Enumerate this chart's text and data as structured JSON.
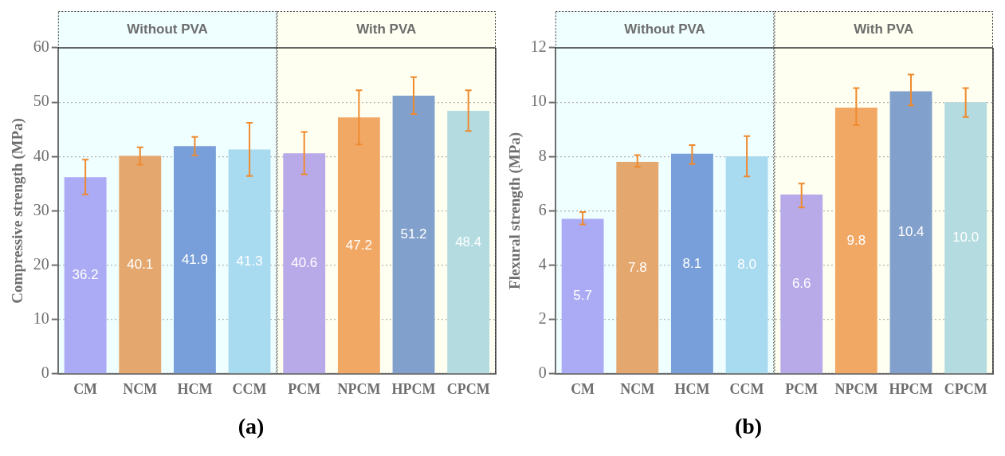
{
  "chart_data": [
    {
      "type": "bar",
      "title": "(a)",
      "ylabel": "Compressive strength (MPa)",
      "categories": [
        "CM",
        "NCM",
        "HCM",
        "CCM",
        "PCM",
        "NPCM",
        "HPCM",
        "CPCM"
      ],
      "values": [
        36.2,
        40.1,
        41.9,
        41.3,
        40.6,
        47.2,
        51.2,
        48.4
      ],
      "colors": [
        "#aaaaf5",
        "#e4a76e",
        "#789fda",
        "#a8daf0",
        "#b8aae8",
        "#f2a865",
        "#82a0cc",
        "#b3dbe0"
      ],
      "errors": [
        [
          33.0,
          39.4
        ],
        [
          38.5,
          41.7
        ],
        [
          40.2,
          43.6
        ],
        [
          36.4,
          46.2
        ],
        [
          36.7,
          44.5
        ],
        [
          42.2,
          52.2
        ],
        [
          47.8,
          54.6
        ],
        [
          44.7,
          52.2
        ]
      ],
      "ylim": [
        0,
        60
      ],
      "yticks": [
        0,
        10,
        20,
        30,
        40,
        50,
        60
      ],
      "bands": [
        {
          "axis": "x",
          "from": "CM",
          "to": "CCM",
          "label": "Without PVA",
          "color": "#effeff"
        },
        {
          "axis": "x",
          "from": "PCM",
          "to": "CPCM",
          "label": "With PVA",
          "color": "#fefff0"
        }
      ],
      "value_labels": [
        "36.2",
        "40.1",
        "41.9",
        "41.3",
        "40.6",
        "47.2",
        "51.2",
        "48.4"
      ],
      "grid": "y",
      "legend": false
    },
    {
      "type": "bar",
      "title": "(b)",
      "ylabel": "Flexural strength (MPa)",
      "categories": [
        "CM",
        "NCM",
        "HCM",
        "CCM",
        "PCM",
        "NPCM",
        "HPCM",
        "CPCM"
      ],
      "values": [
        5.7,
        7.8,
        8.1,
        8.0,
        6.6,
        9.8,
        10.4,
        10.0
      ],
      "colors": [
        "#aaaaf5",
        "#e4a76e",
        "#789fda",
        "#a8daf0",
        "#b8aae8",
        "#f2a865",
        "#82a0cc",
        "#b3dbe0"
      ],
      "errors": [
        [
          5.5,
          5.95
        ],
        [
          7.62,
          8.05
        ],
        [
          7.72,
          8.42
        ],
        [
          7.27,
          8.75
        ],
        [
          6.12,
          7.0
        ],
        [
          9.15,
          10.52
        ],
        [
          9.88,
          11.02
        ],
        [
          9.45,
          10.52
        ]
      ],
      "ylim": [
        0,
        12
      ],
      "yticks": [
        0,
        2,
        4,
        6,
        8,
        10,
        12
      ],
      "bands": [
        {
          "axis": "x",
          "from": "CM",
          "to": "CCM",
          "label": "Without PVA",
          "color": "#effeff"
        },
        {
          "axis": "x",
          "from": "PCM",
          "to": "CPCM",
          "label": "With PVA",
          "color": "#fefff0"
        }
      ],
      "value_labels": [
        "5.7",
        "7.8",
        "8.1",
        "8.0",
        "6.6",
        "9.8",
        "10.4",
        "10.0"
      ],
      "grid": "y",
      "legend": false
    }
  ]
}
